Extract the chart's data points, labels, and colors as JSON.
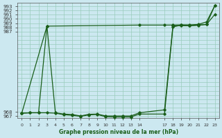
{
  "bg_color": "#cce8f0",
  "grid_color": "#99ccbb",
  "line_color": "#1a5e1a",
  "xlabel": "Graphe pression niveau de la mer (hPa)",
  "ylim": [
    966.5,
    993.8
  ],
  "xlim": [
    -0.5,
    23.5
  ],
  "yticks": [
    967,
    968,
    987,
    988,
    989,
    990,
    991,
    992,
    993
  ],
  "ytick_labels": [
    "967",
    "968",
    "987",
    "988",
    "989",
    "990",
    "991",
    "992",
    "993"
  ],
  "xticks": [
    0,
    1,
    2,
    3,
    4,
    5,
    6,
    7,
    8,
    9,
    10,
    11,
    12,
    13,
    14,
    17,
    18,
    19,
    20,
    21,
    22,
    23
  ],
  "xtick_labels": [
    "0",
    "1",
    "2",
    "3",
    "4",
    "5",
    "6",
    "7",
    "8",
    "9",
    "10",
    "11",
    "12",
    "13",
    "14",
    "17",
    "18",
    "19",
    "20",
    "21",
    "22",
    "23"
  ],
  "series1_x": [
    0,
    3,
    14,
    17,
    18,
    19,
    20,
    21,
    22,
    23
  ],
  "series1_y": [
    967.7,
    988.3,
    988.55,
    988.55,
    988.55,
    988.6,
    988.6,
    988.7,
    989.3,
    993.2
  ],
  "series2_x": [
    0,
    1,
    2,
    3,
    4,
    5,
    6,
    7,
    8,
    9,
    10,
    11,
    12,
    13,
    14,
    17,
    18,
    19,
    20,
    21,
    22,
    23
  ],
  "series2_y": [
    967.7,
    967.8,
    967.8,
    988.3,
    967.8,
    967.5,
    967.4,
    967.05,
    967.45,
    967.5,
    967.05,
    967.05,
    967.05,
    967.05,
    967.8,
    968.5,
    988.4,
    988.4,
    988.4,
    988.5,
    988.7,
    993.2
  ],
  "series3_x": [
    0,
    1,
    2,
    3,
    4,
    5,
    6,
    7,
    8,
    9,
    10,
    11,
    12,
    13,
    14,
    17,
    18,
    19,
    20,
    21,
    22,
    23
  ],
  "series3_y": [
    967.7,
    967.8,
    967.8,
    967.8,
    967.7,
    967.35,
    967.2,
    966.95,
    967.3,
    967.4,
    966.85,
    966.8,
    966.8,
    966.8,
    967.5,
    967.5,
    988.1,
    988.55,
    988.4,
    988.55,
    988.7,
    991.1
  ]
}
